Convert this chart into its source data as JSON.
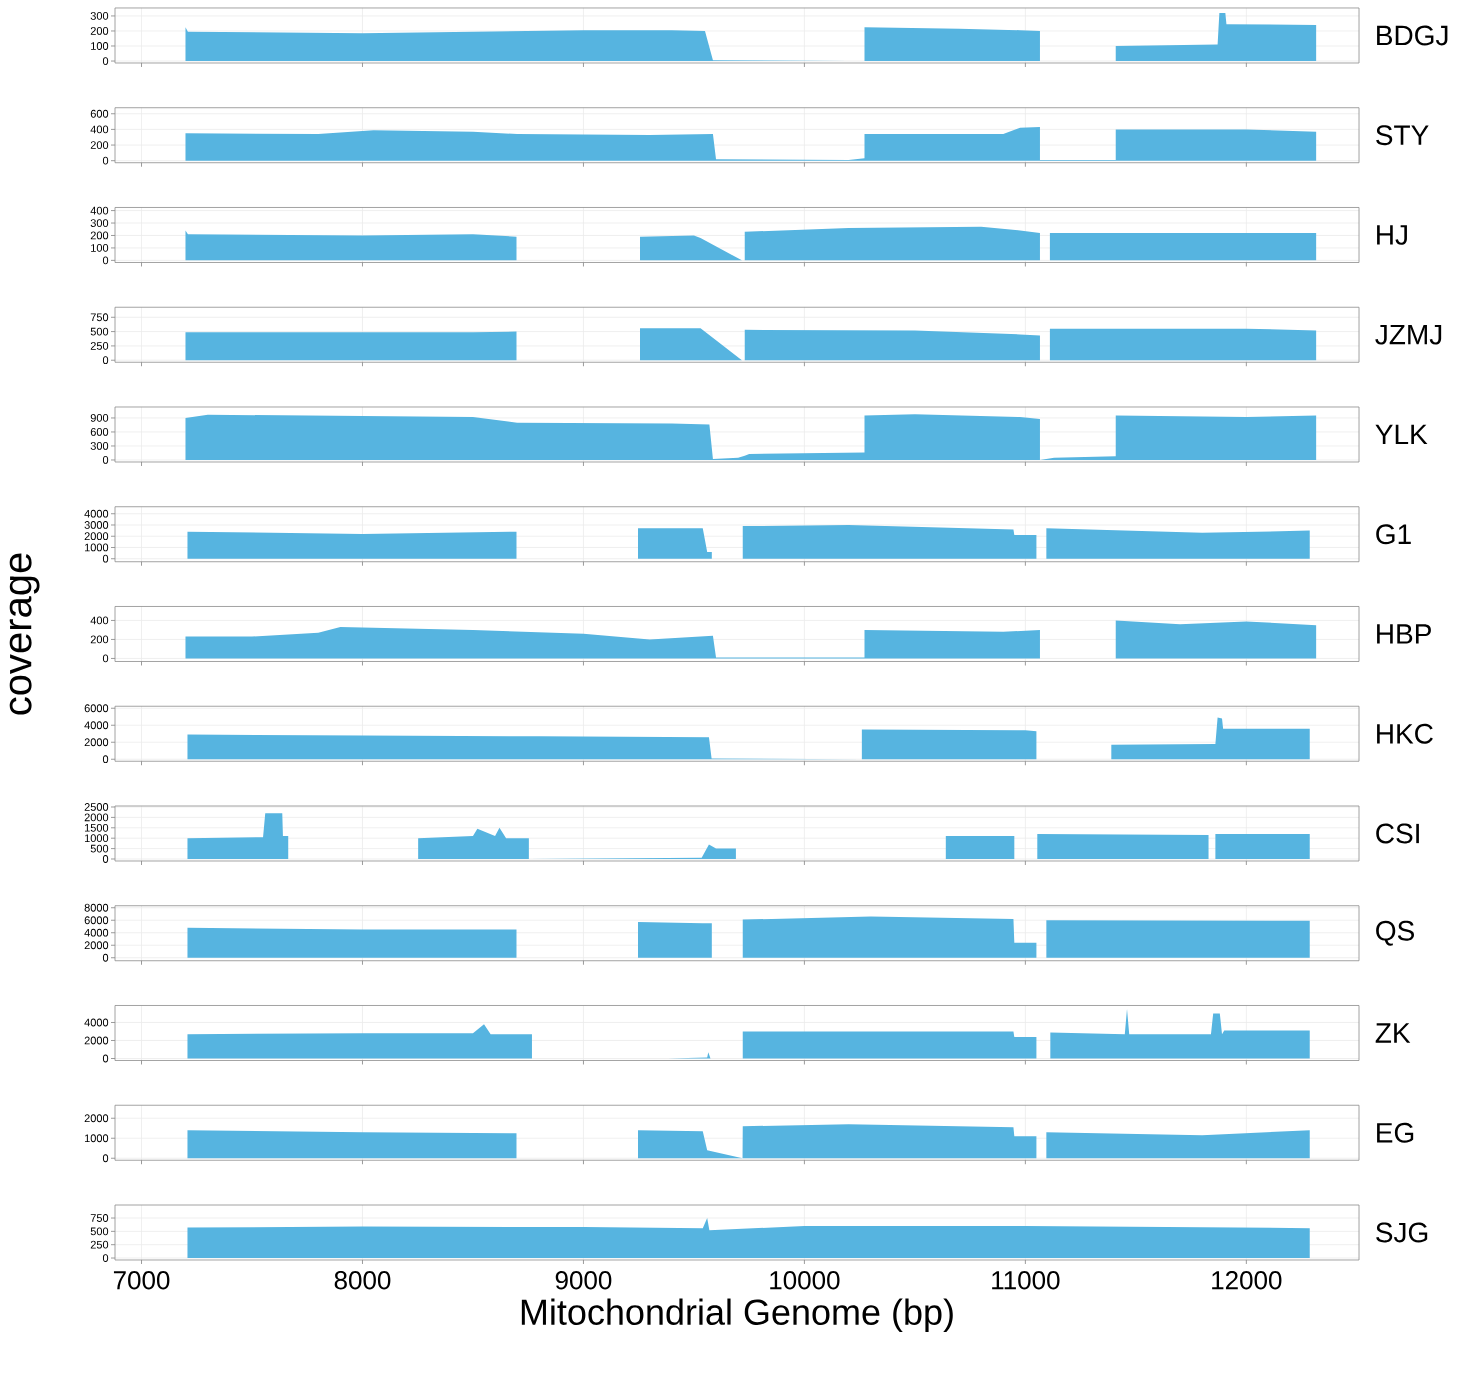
{
  "chart_data": [
    {
      "type": "area",
      "grid": true,
      "tick_labels": "y",
      "xlim": [
        6880,
        12510
      ],
      "xticks": [
        7000,
        8000,
        9000,
        10000,
        11000,
        12000
      ],
      "ylim": [
        -13,
        353
      ],
      "yticks": [
        0,
        100,
        200,
        300
      ],
      "x": [
        7199,
        7199,
        7210,
        8000,
        8500,
        9000,
        9400,
        9550,
        9586,
        10200,
        10272,
        10272,
        10700,
        10976,
        11066,
        11066,
        11409,
        11409,
        11870,
        11878,
        11905,
        11910,
        12316,
        12316
      ],
      "series": [
        {
          "name": "BDGJ",
          "color": "#56b4e0",
          "values": [
            0,
            225,
            195,
            185,
            195,
            205,
            205,
            200,
            5,
            0,
            0,
            225,
            215,
            205,
            200,
            0,
            0,
            100,
            110,
            320,
            320,
            245,
            240,
            0
          ]
        }
      ]
    },
    {
      "type": "area",
      "grid": true,
      "tick_labels": "y",
      "xlim": [
        6880,
        12510
      ],
      "xticks": [
        7000,
        8000,
        9000,
        10000,
        11000,
        12000
      ],
      "ylim": [
        -26,
        677
      ],
      "yticks": [
        0,
        200,
        400,
        600
      ],
      "x": [
        7199,
        7199,
        7800,
        8050,
        8500,
        8700,
        9300,
        9586,
        9600,
        10200,
        10272,
        10272,
        10900,
        10976,
        11066,
        11066,
        11409,
        11409,
        12000,
        12316,
        12316
      ],
      "series": [
        {
          "name": "STY",
          "color": "#56b4e0",
          "values": [
            0,
            350,
            340,
            390,
            370,
            340,
            330,
            340,
            20,
            10,
            30,
            340,
            340,
            420,
            430,
            10,
            10,
            400,
            400,
            370,
            0
          ]
        }
      ]
    },
    {
      "type": "area",
      "grid": true,
      "tick_labels": "y",
      "xlim": [
        6880,
        12510
      ],
      "xticks": [
        7000,
        8000,
        9000,
        10000,
        11000,
        12000
      ],
      "ylim": [
        -17,
        425
      ],
      "yticks": [
        0,
        100,
        200,
        300,
        400
      ],
      "x": [
        7199,
        7199,
        7210,
        8000,
        8500,
        8697,
        8697,
        9256,
        9256,
        9500,
        9530,
        9717,
        9730,
        9730,
        10200,
        10800,
        10976,
        11066,
        11066,
        11111,
        11111,
        12000,
        12316,
        12316
      ],
      "series": [
        {
          "name": "HJ",
          "color": "#56b4e0",
          "values": [
            0,
            240,
            210,
            200,
            210,
            190,
            0,
            0,
            190,
            200,
            180,
            0,
            0,
            230,
            260,
            270,
            240,
            220,
            0,
            0,
            220,
            220,
            220,
            0
          ]
        }
      ]
    },
    {
      "type": "area",
      "grid": true,
      "tick_labels": "y",
      "xlim": [
        6880,
        12510
      ],
      "xticks": [
        7000,
        8000,
        9000,
        10000,
        11000,
        12000
      ],
      "ylim": [
        -35,
        925
      ],
      "yticks": [
        0,
        250,
        500,
        750
      ],
      "x": [
        7199,
        7199,
        8500,
        8697,
        8697,
        9256,
        9256,
        9530,
        9717,
        9730,
        9730,
        10500,
        10976,
        11066,
        11066,
        11111,
        11111,
        12000,
        12316,
        12316
      ],
      "series": [
        {
          "name": "JZMJ",
          "color": "#56b4e0",
          "values": [
            0,
            490,
            490,
            500,
            0,
            0,
            560,
            560,
            0,
            0,
            530,
            520,
            450,
            430,
            0,
            0,
            550,
            550,
            520,
            0
          ]
        }
      ]
    },
    {
      "type": "area",
      "grid": true,
      "tick_labels": "y",
      "xlim": [
        6880,
        12510
      ],
      "xticks": [
        7000,
        8000,
        9000,
        10000,
        11000,
        12000
      ],
      "ylim": [
        -43,
        1135
      ],
      "yticks": [
        0,
        300,
        600,
        900
      ],
      "x": [
        7199,
        7199,
        7300,
        8000,
        8500,
        8700,
        9400,
        9570,
        9586,
        9700,
        9730,
        9750,
        10272,
        10272,
        10500,
        10976,
        11066,
        11066,
        11130,
        11409,
        11409,
        12000,
        12316,
        12316
      ],
      "series": [
        {
          "name": "YLK",
          "color": "#56b4e0",
          "values": [
            0,
            900,
            970,
            940,
            920,
            800,
            780,
            760,
            20,
            50,
            90,
            130,
            160,
            950,
            980,
            920,
            880,
            0,
            50,
            80,
            950,
            920,
            950,
            0
          ]
        }
      ]
    },
    {
      "type": "area",
      "grid": true,
      "tick_labels": "y",
      "xlim": [
        6880,
        12510
      ],
      "xticks": [
        7000,
        8000,
        9000,
        10000,
        11000,
        12000
      ],
      "ylim": [
        -267,
        4622
      ],
      "yticks": [
        0,
        1000,
        2000,
        3000,
        4000
      ],
      "x": [
        7208,
        7208,
        8000,
        8697,
        8697,
        9247,
        9247,
        9540,
        9560,
        9581,
        9581,
        9721,
        9721,
        10200,
        10946,
        10950,
        11050,
        11050,
        11095,
        11095,
        11800,
        12287,
        12287
      ],
      "series": [
        {
          "name": "G1",
          "color": "#56b4e0",
          "values": [
            0,
            2400,
            2200,
            2400,
            0,
            0,
            2700,
            2700,
            600,
            600,
            0,
            0,
            2900,
            3000,
            2600,
            2100,
            2100,
            0,
            0,
            2700,
            2300,
            2500,
            0
          ]
        }
      ]
    },
    {
      "type": "area",
      "ylabel": "coverage",
      "grid": true,
      "tick_labels": "y",
      "xlim": [
        6880,
        12510
      ],
      "xticks": [
        7000,
        8000,
        9000,
        10000,
        11000,
        12000
      ],
      "ylim": [
        -32,
        547
      ],
      "yticks": [
        0,
        200,
        400
      ],
      "x": [
        7199,
        7199,
        7500,
        7800,
        7900,
        8500,
        9000,
        9300,
        9586,
        9600,
        10272,
        10272,
        10900,
        11066,
        11066,
        11409,
        11409,
        11700,
        12000,
        12316,
        12316
      ],
      "series": [
        {
          "name": "HBP",
          "color": "#56b4e0",
          "values": [
            0,
            230,
            230,
            270,
            330,
            300,
            260,
            200,
            240,
            10,
            10,
            300,
            280,
            300,
            0,
            0,
            400,
            360,
            390,
            350,
            0
          ]
        }
      ]
    },
    {
      "type": "area",
      "grid": true,
      "tick_labels": "y",
      "xlim": [
        6880,
        12510
      ],
      "xticks": [
        7000,
        8000,
        9000,
        10000,
        11000,
        12000
      ],
      "ylim": [
        -235,
        6235
      ],
      "yticks": [
        0,
        2000,
        4000,
        6000
      ],
      "x": [
        7208,
        7208,
        8000,
        8800,
        9568,
        9580,
        10260,
        10260,
        11000,
        11050,
        11050,
        11389,
        11389,
        11860,
        11870,
        11890,
        11895,
        12287,
        12287
      ],
      "series": [
        {
          "name": "HKC",
          "color": "#56b4e0",
          "values": [
            0,
            2900,
            2800,
            2700,
            2600,
            100,
            0,
            3500,
            3400,
            3300,
            0,
            0,
            1700,
            1800,
            4900,
            4800,
            3600,
            3600,
            0
          ]
        }
      ]
    },
    {
      "type": "area",
      "grid": true,
      "tick_labels": "y",
      "xlim": [
        6880,
        12510
      ],
      "xticks": [
        7000,
        8000,
        9000,
        10000,
        11000,
        12000
      ],
      "ylim": [
        -96,
        2548
      ],
      "yticks": [
        0,
        500,
        1000,
        1500,
        2000,
        2500
      ],
      "x": [
        7208,
        7208,
        7550,
        7560,
        7637,
        7640,
        7664,
        7664,
        8252,
        8252,
        8500,
        8520,
        8600,
        8620,
        8650,
        8753,
        8753,
        9535,
        9568,
        9600,
        9690,
        9690,
        10640,
        10640,
        10950,
        10950,
        11054,
        11054,
        11829,
        11829,
        11860,
        11860,
        12287,
        12287
      ],
      "series": [
        {
          "name": "CSI",
          "color": "#56b4e0",
          "values": [
            0,
            1000,
            1050,
            2200,
            2200,
            1100,
            1100,
            0,
            0,
            1000,
            1100,
            1450,
            1100,
            1500,
            1000,
            1000,
            0,
            60,
            700,
            500,
            500,
            0,
            0,
            1100,
            1100,
            0,
            0,
            1200,
            1150,
            0,
            0,
            1200,
            1200,
            0
          ]
        }
      ]
    },
    {
      "type": "area",
      "grid": true,
      "tick_labels": "y",
      "xlim": [
        6880,
        12510
      ],
      "xticks": [
        7000,
        8000,
        9000,
        10000,
        11000,
        12000
      ],
      "ylim": [
        -480,
        8320
      ],
      "yticks": [
        0,
        2000,
        4000,
        6000,
        8000
      ],
      "x": [
        7208,
        7208,
        8000,
        8697,
        8697,
        9247,
        9247,
        9540,
        9581,
        9581,
        9721,
        9721,
        10300,
        10946,
        10950,
        11050,
        11050,
        11095,
        11095,
        12287,
        12287
      ],
      "series": [
        {
          "name": "QS",
          "color": "#56b4e0",
          "values": [
            0,
            4800,
            4500,
            4500,
            0,
            0,
            5700,
            5500,
            5500,
            0,
            0,
            6100,
            6600,
            6200,
            2400,
            2400,
            0,
            0,
            6000,
            5900,
            0
          ]
        }
      ]
    },
    {
      "type": "area",
      "grid": true,
      "tick_labels": "y",
      "xlim": [
        6880,
        12510
      ],
      "xticks": [
        7000,
        8000,
        9000,
        10000,
        11000,
        12000
      ],
      "ylim": [
        -222,
        5889
      ],
      "yticks": [
        0,
        2000,
        4000
      ],
      "x": [
        7208,
        7208,
        8000,
        8500,
        8550,
        8580,
        8767,
        8767,
        9382,
        9560,
        9565,
        9575,
        9721,
        9721,
        10946,
        10950,
        11050,
        11050,
        11113,
        11113,
        11450,
        11460,
        11470,
        11840,
        11850,
        11880,
        11890,
        11900,
        12287,
        12287
      ],
      "series": [
        {
          "name": "ZK",
          "color": "#56b4e0",
          "values": [
            0,
            2700,
            2800,
            2800,
            3800,
            2700,
            2700,
            0,
            0,
            100,
            700,
            0,
            0,
            3000,
            3000,
            2400,
            2400,
            0,
            0,
            2900,
            2700,
            5500,
            2700,
            2700,
            5000,
            5000,
            2700,
            3100,
            3100,
            0
          ]
        }
      ]
    },
    {
      "type": "area",
      "grid": true,
      "tick_labels": "y",
      "xlim": [
        6880,
        12510
      ],
      "xticks": [
        7000,
        8000,
        9000,
        10000,
        11000,
        12000
      ],
      "ylim": [
        -100,
        2650
      ],
      "yticks": [
        0,
        1000,
        2000
      ],
      "x": [
        7208,
        7208,
        8000,
        8697,
        8697,
        9247,
        9247,
        9540,
        9560,
        9720,
        9721,
        10200,
        10946,
        10950,
        11050,
        11050,
        11095,
        11095,
        11800,
        12287,
        12287
      ],
      "series": [
        {
          "name": "EG",
          "color": "#56b4e0",
          "values": [
            0,
            1400,
            1300,
            1250,
            0,
            0,
            1400,
            1350,
            400,
            0,
            1600,
            1700,
            1550,
            1100,
            1100,
            0,
            0,
            1300,
            1150,
            1400,
            0
          ]
        }
      ]
    },
    {
      "type": "area",
      "xlabel": "Mitochondrial Genome (bp)",
      "grid": true,
      "xlim": [
        6880,
        12510
      ],
      "xticks": [
        7000,
        8000,
        9000,
        10000,
        11000,
        12000
      ],
      "ylim": [
        -37,
        994
      ],
      "yticks": [
        0,
        250,
        500,
        750
      ],
      "x": [
        7208,
        7208,
        8000,
        9000,
        9540,
        9560,
        9570,
        10000,
        11000,
        12287,
        12287
      ],
      "series": [
        {
          "name": "SJG",
          "color": "#56b4e0",
          "values": [
            0,
            570,
            590,
            580,
            560,
            750,
            520,
            600,
            600,
            560,
            0
          ]
        }
      ]
    }
  ]
}
